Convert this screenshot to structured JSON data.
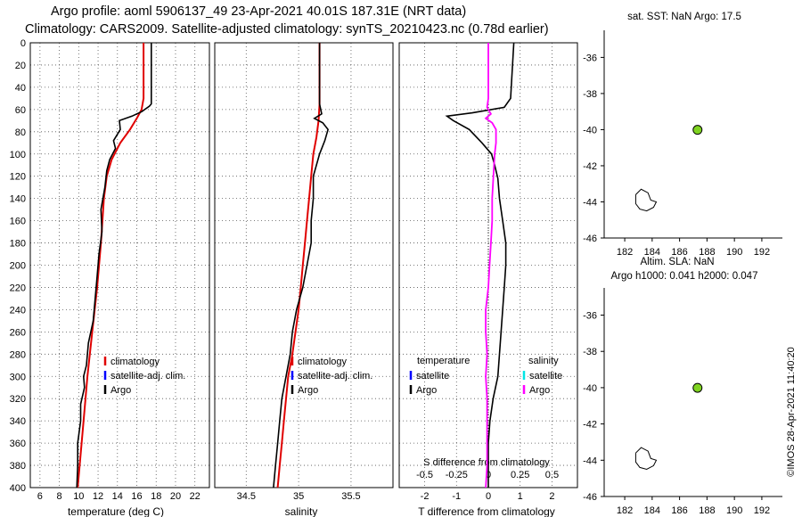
{
  "header": {
    "title_line1": "Argo profile: aoml 5906137_49 23-Apr-2021 40.01S 187.31E (NRT data)",
    "title_line2": "Climatology: CARS2009. Satellite-adjusted climatology: synTS_20210423.nc (0.78d earlier)"
  },
  "colors": {
    "climatology": "#e00000",
    "satellite": "#0000ff",
    "argo": "#000000",
    "argo_salinity_diff": "#ff00ff",
    "satellite_salinity": "#00e5e5",
    "profile_dot": "#7fd321"
  },
  "chart_data": [
    {
      "type": "line",
      "name": "temperature-panel",
      "xlabel": "temperature (deg C)",
      "ylabel": "",
      "xlim": [
        5,
        23.5
      ],
      "ylim": [
        400,
        0
      ],
      "xticks": [
        "6",
        "8",
        "10",
        "12",
        "14",
        "16",
        "18",
        "20",
        "22"
      ],
      "yticks": [
        "0",
        "20",
        "40",
        "60",
        "80",
        "100",
        "120",
        "140",
        "160",
        "180",
        "200",
        "220",
        "240",
        "260",
        "280",
        "300",
        "320",
        "340",
        "360",
        "380",
        "400"
      ],
      "legend": [
        "climatology",
        "satellite-adj. clim.",
        "Argo"
      ],
      "series": [
        {
          "name": "climatology",
          "color": "#e00000",
          "points": [
            [
              16.7,
              0
            ],
            [
              16.7,
              50
            ],
            [
              16.5,
              60
            ],
            [
              16,
              68
            ],
            [
              15.3,
              78
            ],
            [
              14.3,
              90
            ],
            [
              13.4,
              105
            ],
            [
              12.9,
              120
            ],
            [
              12.6,
              140
            ],
            [
              12.3,
              180
            ],
            [
              11.9,
              220
            ],
            [
              11.4,
              260
            ],
            [
              10.9,
              300
            ],
            [
              10.5,
              340
            ],
            [
              10.1,
              380
            ],
            [
              9.9,
              400
            ]
          ]
        },
        {
          "name": "Argo",
          "color": "#000000",
          "points": [
            [
              17.5,
              0
            ],
            [
              17.5,
              55
            ],
            [
              17.3,
              57
            ],
            [
              16.5,
              62
            ],
            [
              15.5,
              66
            ],
            [
              14.2,
              70
            ],
            [
              14.3,
              78
            ],
            [
              13.6,
              88
            ],
            [
              13.8,
              95
            ],
            [
              13.2,
              105
            ],
            [
              12.9,
              115
            ],
            [
              12.7,
              130
            ],
            [
              12.3,
              150
            ],
            [
              12.4,
              170
            ],
            [
              12.1,
              190
            ],
            [
              11.9,
              210
            ],
            [
              11.7,
              230
            ],
            [
              11.5,
              250
            ],
            [
              11,
              270
            ],
            [
              10.8,
              290
            ],
            [
              10.5,
              300
            ],
            [
              10.6,
              310
            ],
            [
              10.2,
              325
            ],
            [
              10.2,
              340
            ],
            [
              9.9,
              360
            ],
            [
              9.9,
              380
            ],
            [
              9.8,
              400
            ]
          ]
        }
      ]
    },
    {
      "type": "line",
      "name": "salinity-panel",
      "xlabel": "salinity",
      "ylabel": "",
      "xlim": [
        34.2,
        35.9
      ],
      "ylim": [
        400,
        0
      ],
      "xticks": [
        "34.5",
        "35",
        "35.5"
      ],
      "legend": [
        "climatology",
        "satellite-adj. clim.",
        "Argo"
      ],
      "series": [
        {
          "name": "climatology",
          "color": "#e00000",
          "points": [
            [
              35.2,
              0
            ],
            [
              35.2,
              55
            ],
            [
              35.19,
              70
            ],
            [
              35.17,
              85
            ],
            [
              35.14,
              100
            ],
            [
              35.12,
              120
            ],
            [
              35.1,
              140
            ],
            [
              35.08,
              160
            ],
            [
              35.06,
              180
            ],
            [
              35.04,
              200
            ],
            [
              35.02,
              220
            ],
            [
              35,
              240
            ],
            [
              34.97,
              260
            ],
            [
              34.94,
              280
            ],
            [
              34.9,
              300
            ],
            [
              34.88,
              320
            ],
            [
              34.86,
              340
            ],
            [
              34.84,
              360
            ],
            [
              34.82,
              380
            ],
            [
              34.8,
              400
            ]
          ]
        },
        {
          "name": "Argo",
          "color": "#000000",
          "points": [
            [
              35.2,
              0
            ],
            [
              35.2,
              55
            ],
            [
              35.22,
              64
            ],
            [
              35.15,
              68
            ],
            [
              35.23,
              72
            ],
            [
              35.28,
              78
            ],
            [
              35.25,
              88
            ],
            [
              35.2,
              100
            ],
            [
              35.14,
              120
            ],
            [
              35.14,
              140
            ],
            [
              35.12,
              160
            ],
            [
              35.12,
              180
            ],
            [
              35.08,
              200
            ],
            [
              35.04,
              220
            ],
            [
              34.98,
              240
            ],
            [
              34.94,
              260
            ],
            [
              34.92,
              280
            ],
            [
              34.88,
              300
            ],
            [
              34.84,
              320
            ],
            [
              34.82,
              340
            ],
            [
              34.8,
              360
            ],
            [
              34.78,
              380
            ],
            [
              34.76,
              400
            ]
          ]
        }
      ]
    },
    {
      "type": "line",
      "name": "difference-panel",
      "xlabel": "T difference from climatology",
      "x2label": "S difference from climatology",
      "xlim": [
        -2.8,
        2.8
      ],
      "x2lim": [
        -0.7,
        0.7
      ],
      "ylim": [
        400,
        0
      ],
      "xticks": [
        "-2",
        "-1",
        "0",
        "1",
        "2"
      ],
      "x2ticks": [
        "-0.5",
        "-0.25",
        "0",
        "0.25",
        "0.5"
      ],
      "legend_groups": [
        {
          "title": "temperature",
          "items": [
            "satellite",
            "Argo"
          ]
        },
        {
          "title": "salinity",
          "items": [
            "satellite",
            "Argo"
          ]
        }
      ],
      "series": [
        {
          "name": "Argo temperature difference",
          "color": "#000000",
          "points": [
            [
              0.8,
              0
            ],
            [
              0.7,
              50
            ],
            [
              0.5,
              58
            ],
            [
              -0.5,
              63
            ],
            [
              -1.3,
              66
            ],
            [
              -1.1,
              70
            ],
            [
              -0.6,
              78
            ],
            [
              -0.2,
              90
            ],
            [
              0.1,
              100
            ],
            [
              0.2,
              110
            ],
            [
              0.3,
              122
            ],
            [
              0.35,
              140
            ],
            [
              0.45,
              160
            ],
            [
              0.55,
              180
            ],
            [
              0.55,
              200
            ],
            [
              0.5,
              220
            ],
            [
              0.45,
              240
            ],
            [
              0.4,
              260
            ],
            [
              0.35,
              280
            ],
            [
              0.3,
              300
            ],
            [
              0.15,
              320
            ],
            [
              0.05,
              340
            ],
            [
              0,
              360
            ],
            [
              0,
              380
            ],
            [
              0,
              400
            ]
          ]
        },
        {
          "name": "Argo salinity difference",
          "color": "#ff00ff",
          "points": [
            [
              0,
              0
            ],
            [
              0,
              50
            ],
            [
              -0.01,
              58
            ],
            [
              0.02,
              64
            ],
            [
              -0.02,
              68
            ],
            [
              0.03,
              72
            ],
            [
              0.06,
              78
            ],
            [
              0.06,
              90
            ],
            [
              0.05,
              100
            ],
            [
              0.04,
              120
            ],
            [
              0.03,
              140
            ],
            [
              0.03,
              160
            ],
            [
              0.02,
              180
            ],
            [
              0.01,
              200
            ],
            [
              0,
              220
            ],
            [
              -0.02,
              240
            ],
            [
              -0.02,
              260
            ],
            [
              -0.01,
              280
            ],
            [
              -0.02,
              300
            ],
            [
              -0.01,
              320
            ],
            [
              -0.01,
              340
            ],
            [
              -0.01,
              360
            ],
            [
              -0.01,
              380
            ],
            [
              -0.02,
              400
            ]
          ]
        }
      ]
    },
    {
      "type": "scatter",
      "name": "sst-map",
      "title": "sat. SST: NaN Argo: 17.5",
      "xlim": [
        180.5,
        193.5
      ],
      "ylim": [
        -46,
        -34.5
      ],
      "xticks": [
        "182",
        "184",
        "186",
        "188",
        "190",
        "192"
      ],
      "yticks": [
        "-36",
        "-38",
        "-40",
        "-42",
        "-44",
        "-46"
      ],
      "points": [
        {
          "x": 187.31,
          "y": -40.01
        }
      ]
    },
    {
      "type": "scatter",
      "name": "sla-map",
      "title": "Altim. SLA: NaN",
      "subtitle": "Argo h1000: 0.041 h2000: 0.047",
      "xlim": [
        180.5,
        193.5
      ],
      "ylim": [
        -46,
        -34.5
      ],
      "xticks": [
        "182",
        "184",
        "186",
        "188",
        "190",
        "192"
      ],
      "yticks": [
        "-36",
        "-38",
        "-40",
        "-42",
        "-44",
        "-46"
      ],
      "points": [
        {
          "x": 187.31,
          "y": -40.01
        }
      ]
    }
  ],
  "watermark": "©IMOS 28-Apr-2021 11:40:20"
}
